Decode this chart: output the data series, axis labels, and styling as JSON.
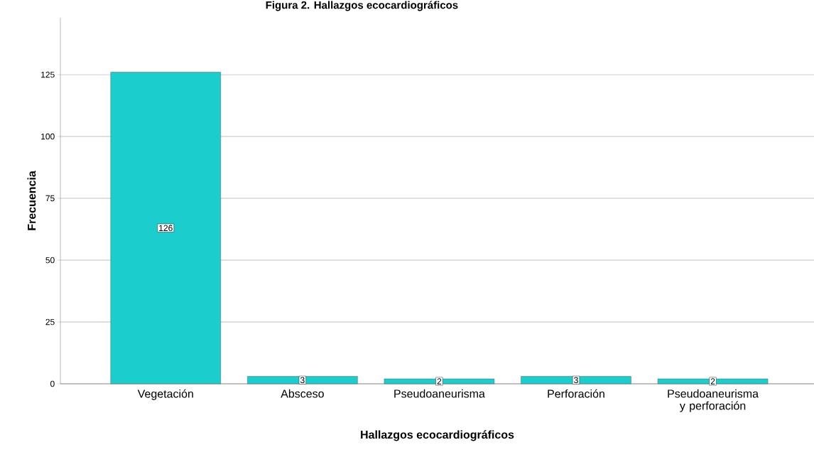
{
  "chart_data": {
    "type": "bar",
    "title": "Figura 2. Hallazgos ecocardiográficos",
    "xlabel": "Hallazgos ecocardiográficos",
    "ylabel": "Frecuencia",
    "categories": [
      "Vegetación",
      "Absceso",
      "Pseudoaneurisma",
      "Perforación",
      "Pseudoaneurisma y perforación"
    ],
    "values": [
      126,
      3,
      2,
      3,
      2
    ],
    "color": "#1ccdcd",
    "ylim": [
      0,
      148
    ],
    "yticks": [
      0,
      25,
      50,
      75,
      100,
      125
    ],
    "grid": "y",
    "data_labels": true
  }
}
